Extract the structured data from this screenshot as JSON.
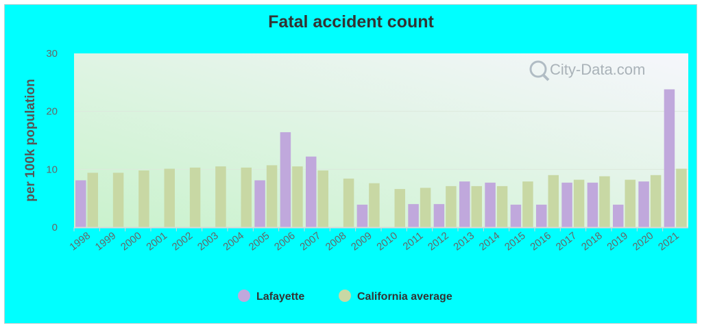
{
  "chart_data": {
    "type": "bar",
    "title": "Fatal accident count",
    "ylabel": "per 100k population",
    "xlabel": "",
    "ylim": [
      0,
      30
    ],
    "yticks": [
      0,
      10,
      20,
      30
    ],
    "categories": [
      "1998",
      "1999",
      "2000",
      "2001",
      "2002",
      "2003",
      "2004",
      "2005",
      "2006",
      "2007",
      "2008",
      "2009",
      "2010",
      "2011",
      "2012",
      "2013",
      "2014",
      "2015",
      "2016",
      "2017",
      "2018",
      "2019",
      "2020",
      "2021"
    ],
    "series": [
      {
        "name": "Lafayette",
        "color": "#c0a8dc",
        "values": [
          8.1,
          null,
          null,
          null,
          null,
          null,
          null,
          8.1,
          16.4,
          12.2,
          null,
          3.9,
          null,
          4.0,
          4.0,
          7.9,
          7.7,
          3.9,
          3.9,
          7.7,
          7.7,
          3.9,
          7.9,
          23.8
        ]
      },
      {
        "name": "California average",
        "color": "#c8d8a4",
        "values": [
          9.4,
          9.4,
          9.8,
          10.1,
          10.3,
          10.5,
          10.3,
          10.7,
          10.5,
          9.8,
          8.4,
          7.6,
          6.6,
          6.8,
          7.1,
          7.1,
          7.1,
          7.9,
          9.0,
          8.2,
          8.8,
          8.2,
          9.0,
          10.1
        ]
      }
    ],
    "legend_position": "bottom-center",
    "grid": true
  },
  "watermark": "City-Data.com"
}
